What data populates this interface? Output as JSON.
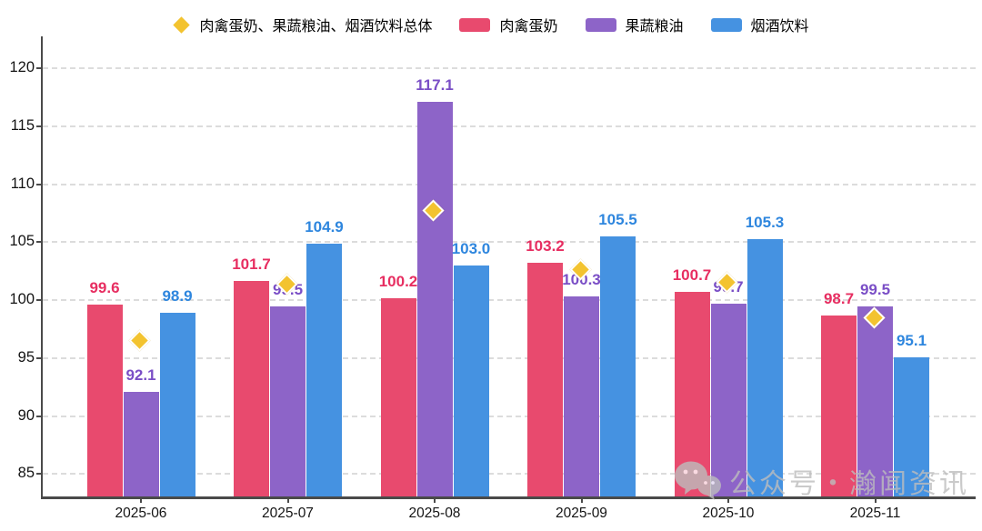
{
  "legend": {
    "items": [
      {
        "label": "肉禽蛋奶、果蔬粮油、烟酒饮料总体",
        "marker": "diamond",
        "color": "#f3c32f"
      },
      {
        "label": "肉禽蛋奶",
        "marker": "swatch",
        "color": "#e84a6e"
      },
      {
        "label": "果蔬粮油",
        "marker": "swatch",
        "color": "#8d64c8"
      },
      {
        "label": "烟酒饮料",
        "marker": "swatch",
        "color": "#4592e1"
      }
    ]
  },
  "chart_data": {
    "type": "bar",
    "title": "",
    "xlabel": "",
    "ylabel": "",
    "categories": [
      "2025-06",
      "2025-07",
      "2025-08",
      "2025-09",
      "2025-10",
      "2025-11"
    ],
    "series": [
      {
        "name": "肉禽蛋奶",
        "type": "bar",
        "color": "#e84a6e",
        "label_color": "#e72e61",
        "values": [
          99.6,
          101.7,
          100.2,
          103.2,
          100.7,
          98.7
        ]
      },
      {
        "name": "果蔬粮油",
        "type": "bar",
        "color": "#8d64c8",
        "label_color": "#7a4ec6",
        "values": [
          92.1,
          99.5,
          117.1,
          100.3,
          99.7,
          99.5
        ]
      },
      {
        "name": "烟酒饮料",
        "type": "bar",
        "color": "#4592e1",
        "label_color": "#2e86de",
        "values": [
          98.9,
          104.9,
          103.0,
          105.5,
          105.3,
          95.1
        ]
      }
    ],
    "scatter": {
      "name": "肉禽蛋奶、果蔬粮油、烟酒饮料总体",
      "type": "scatter",
      "marker": "diamond",
      "color": "#f3c32f",
      "values_estimated": [
        96.4,
        101.3,
        107.6,
        102.5,
        101.4,
        98.4
      ]
    },
    "yticks": [
      85,
      90,
      95,
      100,
      105,
      110,
      115,
      120
    ],
    "ylim": [
      83,
      122.76
    ],
    "grid": "horizontal-dashed",
    "legend_position": "top-center",
    "value_labels": "bars-only, one decimal"
  },
  "watermark": {
    "text": "公众号・瀚闻资讯",
    "icon": "wechat"
  },
  "colors": {
    "background": "#ffffff",
    "grid": "#dcdcdc",
    "spine": "#4a4a4a",
    "axis_text": "#141414",
    "watermark": "#bdbdbd",
    "gold": "#f3c32f",
    "red": "#e84a6e",
    "purple": "#8d64c8",
    "blue": "#4592e1"
  }
}
